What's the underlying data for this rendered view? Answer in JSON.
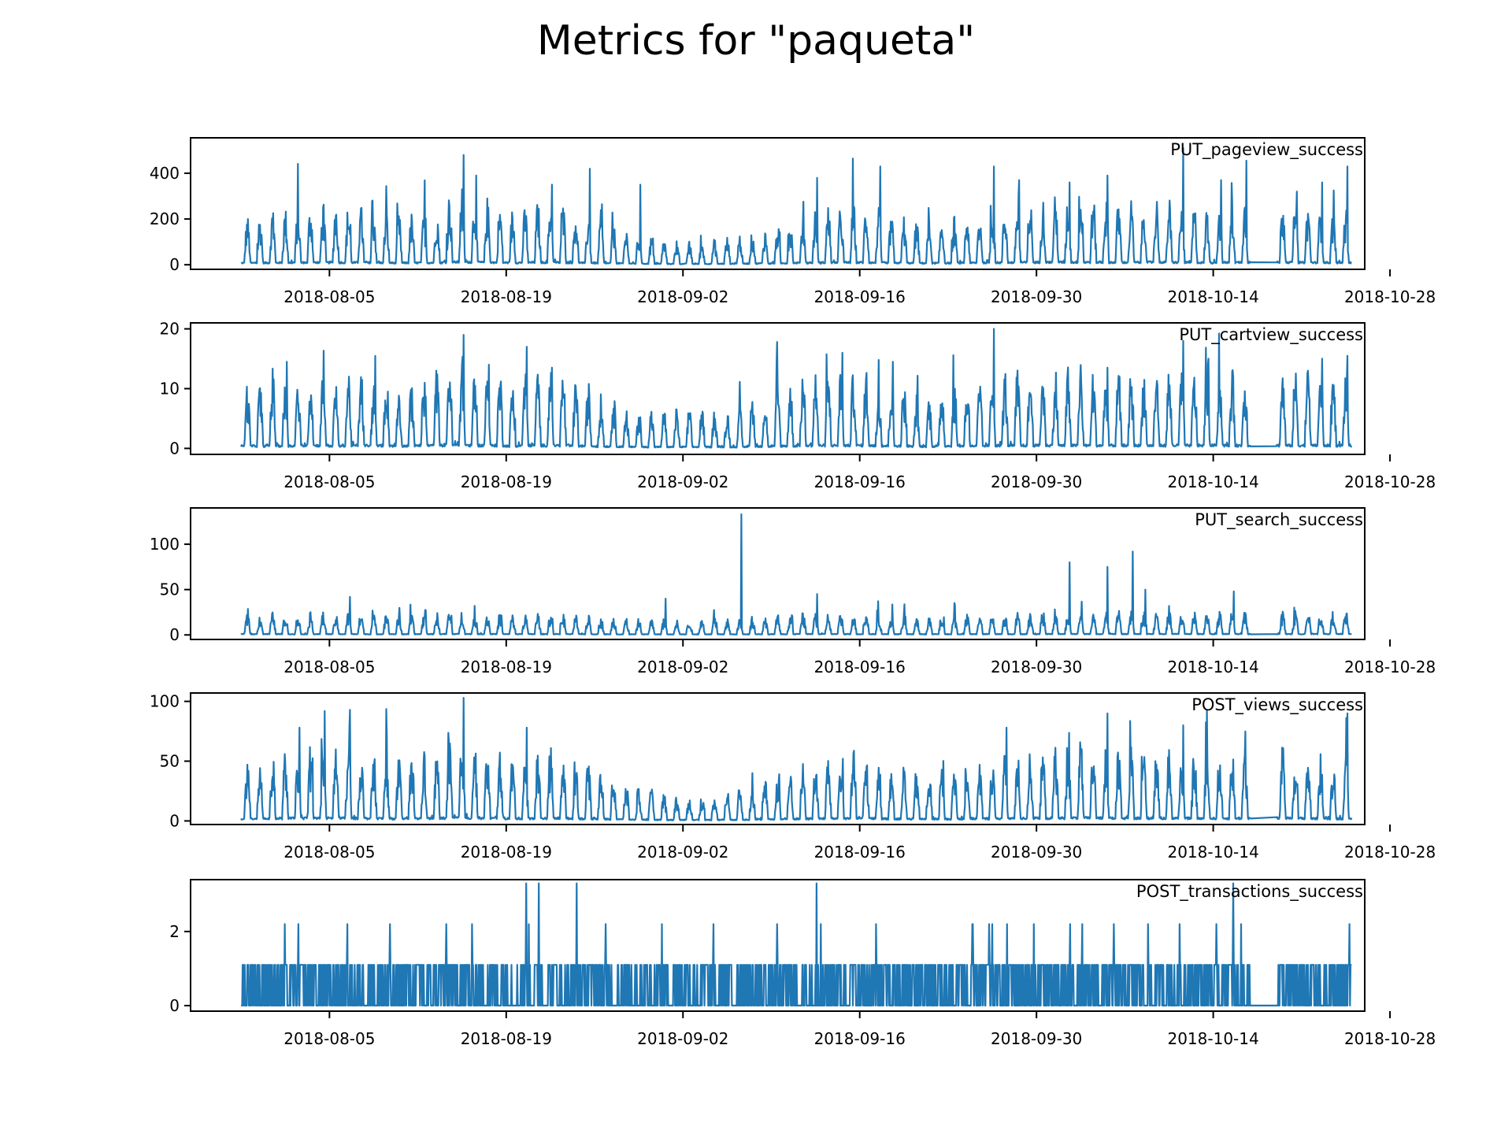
{
  "title": "Metrics for \"paqueta\"",
  "colors": {
    "line": "#1f77b4",
    "axis": "#000000",
    "background": "#ffffff"
  },
  "chart_data": [
    {
      "type": "line",
      "title": "PUT_pageview_success",
      "xlabel": "",
      "ylabel": "",
      "xlim": [
        "2018-07-25",
        "2018-10-26"
      ],
      "x_range": [
        "2018-07-29",
        "2018-10-25"
      ],
      "x_ticks": [
        "2018-08-05",
        "2018-08-19",
        "2018-09-02",
        "2018-09-16",
        "2018-09-30",
        "2018-10-14",
        "2018-10-28"
      ],
      "ylim": [
        -20,
        555
      ],
      "y_ticks": [
        0,
        200,
        400
      ],
      "gap": [
        "2018-10-17",
        "2018-10-19"
      ],
      "series": [
        {
          "daily_base": [
            95,
            100,
            105,
            110,
            115,
            120,
            120,
            125,
            120,
            115,
            110,
            105,
            100,
            100,
            105,
            110,
            140,
            150,
            145,
            130,
            120,
            110,
            115,
            125,
            130,
            120,
            110,
            100,
            90,
            80,
            70,
            60,
            55,
            50,
            45,
            45,
            45,
            50,
            55,
            60,
            65,
            70,
            80,
            90,
            100,
            110,
            115,
            120,
            125,
            120,
            110,
            100,
            95,
            90,
            85,
            90,
            95,
            100,
            105,
            110,
            115,
            120,
            125,
            130,
            135,
            135,
            140,
            135,
            130,
            125,
            125,
            130,
            135,
            130,
            125,
            120,
            115,
            120,
            125,
            130,
            130,
            130,
            130,
            125,
            120,
            115,
            110,
            110
          ],
          "peaks": [
            [
              "2018-08-15",
              480
            ],
            [
              "2018-08-16",
              390
            ],
            [
              "2018-08-22",
              350
            ],
            [
              "2018-08-25",
              420
            ],
            [
              "2018-08-29",
              350
            ],
            [
              "2018-09-12",
              380
            ],
            [
              "2018-09-17",
              430
            ],
            [
              "2018-09-26",
              430
            ],
            [
              "2018-09-28",
              370
            ],
            [
              "2018-10-02",
              360
            ],
            [
              "2018-10-05",
              390
            ],
            [
              "2018-10-11",
              510
            ],
            [
              "2018-10-14",
              370
            ],
            [
              "2018-10-16",
              455
            ],
            [
              "2018-10-18",
              450
            ],
            [
              "2018-10-22",
              360
            ],
            [
              "2018-10-24",
              430
            ]
          ]
        }
      ]
    },
    {
      "type": "line",
      "title": "PUT_cartview_success",
      "xlabel": "",
      "ylabel": "",
      "xlim": [
        "2018-07-25",
        "2018-10-26"
      ],
      "x_range": [
        "2018-07-29",
        "2018-10-25"
      ],
      "x_ticks": [
        "2018-08-05",
        "2018-08-19",
        "2018-09-02",
        "2018-09-16",
        "2018-09-30",
        "2018-10-14",
        "2018-10-28"
      ],
      "ylim": [
        -1,
        21
      ],
      "y_ticks": [
        0,
        10,
        20
      ],
      "gap": [
        "2018-10-17",
        "2018-10-19"
      ],
      "series": [
        {
          "daily_base": [
            5,
            5,
            6,
            5,
            5,
            6,
            6,
            5,
            6,
            6,
            5,
            6,
            5,
            5,
            6,
            6,
            7,
            7,
            6,
            6,
            6,
            5,
            6,
            6,
            6,
            6,
            5,
            5,
            4,
            4,
            3,
            3,
            3,
            3,
            3,
            3,
            3,
            3,
            3,
            3,
            4,
            4,
            5,
            5,
            6,
            6,
            6,
            6,
            6,
            6,
            5,
            5,
            5,
            4,
            4,
            5,
            5,
            5,
            5,
            6,
            6,
            6,
            6,
            6,
            6,
            6,
            6,
            6,
            6,
            6,
            6,
            6,
            6,
            6,
            6,
            6,
            6,
            6,
            6,
            6,
            6,
            6,
            6,
            6,
            6,
            6,
            6,
            6
          ],
          "peaks": [
            [
              "2018-08-01",
              14.5
            ],
            [
              "2018-08-08",
              15.5
            ],
            [
              "2018-08-15",
              19
            ],
            [
              "2018-08-17",
              14
            ],
            [
              "2018-08-20",
              17
            ],
            [
              "2018-08-22",
              13.5
            ],
            [
              "2018-09-14",
              16
            ],
            [
              "2018-09-18",
              14.5
            ],
            [
              "2018-09-26",
              20
            ],
            [
              "2018-10-05",
              13.5
            ],
            [
              "2018-10-11",
              18
            ],
            [
              "2018-10-13",
              15
            ],
            [
              "2018-10-22",
              15
            ],
            [
              "2018-10-24",
              15.5
            ]
          ]
        }
      ]
    },
    {
      "type": "line",
      "title": "PUT_search_success",
      "xlabel": "",
      "ylabel": "",
      "xlim": [
        "2018-07-25",
        "2018-10-26"
      ],
      "x_range": [
        "2018-07-29",
        "2018-10-25"
      ],
      "x_ticks": [
        "2018-08-05",
        "2018-08-19",
        "2018-09-02",
        "2018-09-16",
        "2018-09-30",
        "2018-10-14",
        "2018-10-28"
      ],
      "ylim": [
        -5,
        140
      ],
      "y_ticks": [
        0,
        50,
        100
      ],
      "gap": [
        "2018-10-17",
        "2018-10-19"
      ],
      "series": [
        {
          "daily_base": [
            10,
            10,
            11,
            10,
            10,
            11,
            11,
            10,
            11,
            11,
            10,
            11,
            10,
            10,
            11,
            11,
            12,
            12,
            11,
            11,
            11,
            10,
            11,
            11,
            11,
            11,
            10,
            10,
            9,
            9,
            8,
            8,
            8,
            8,
            8,
            8,
            8,
            8,
            8,
            8,
            9,
            9,
            10,
            10,
            11,
            11,
            11,
            11,
            11,
            11,
            10,
            10,
            10,
            9,
            9,
            10,
            10,
            10,
            10,
            11,
            11,
            11,
            11,
            12,
            12,
            12,
            12,
            12,
            12,
            12,
            12,
            12,
            12,
            12,
            12,
            12,
            12,
            12,
            12,
            12,
            12,
            12,
            12,
            12,
            12,
            12,
            12,
            12
          ],
          "peaks": [
            [
              "2018-08-06",
              42
            ],
            [
              "2018-08-31",
              40
            ],
            [
              "2018-09-06",
              133
            ],
            [
              "2018-09-12",
              45
            ],
            [
              "2018-10-02",
              80
            ],
            [
              "2018-10-05",
              75
            ],
            [
              "2018-10-07",
              92
            ],
            [
              "2018-10-08",
              50
            ],
            [
              "2018-10-15",
              48
            ]
          ]
        }
      ]
    },
    {
      "type": "line",
      "title": "POST_views_success",
      "xlabel": "",
      "ylabel": "",
      "xlim": [
        "2018-07-25",
        "2018-10-26"
      ],
      "x_range": [
        "2018-07-29",
        "2018-10-25"
      ],
      "x_ticks": [
        "2018-08-05",
        "2018-08-19",
        "2018-09-02",
        "2018-09-16",
        "2018-09-30",
        "2018-10-14",
        "2018-10-28"
      ],
      "ylim": [
        -3,
        107
      ],
      "y_ticks": [
        0,
        50,
        100
      ],
      "gap": [
        "2018-10-17",
        "2018-10-19"
      ],
      "series": [
        {
          "daily_base": [
            22,
            24,
            25,
            26,
            27,
            28,
            28,
            29,
            28,
            27,
            26,
            25,
            24,
            24,
            25,
            26,
            30,
            32,
            30,
            28,
            26,
            25,
            26,
            27,
            28,
            27,
            25,
            23,
            20,
            18,
            15,
            13,
            12,
            11,
            10,
            10,
            10,
            11,
            12,
            13,
            14,
            16,
            18,
            20,
            22,
            24,
            25,
            26,
            27,
            26,
            24,
            22,
            21,
            20,
            19,
            20,
            21,
            22,
            23,
            24,
            25,
            26,
            27,
            28,
            29,
            29,
            30,
            29,
            28,
            27,
            27,
            28,
            29,
            28,
            27,
            26,
            25,
            26,
            27,
            28,
            28,
            28,
            28,
            27,
            26,
            25,
            24,
            24
          ],
          "peaks": [
            [
              "2018-08-02",
              78
            ],
            [
              "2018-08-04",
              92
            ],
            [
              "2018-08-06",
              93
            ],
            [
              "2018-08-15",
              103
            ],
            [
              "2018-08-20",
              78
            ],
            [
              "2018-09-27",
              78
            ],
            [
              "2018-10-05",
              90
            ],
            [
              "2018-10-11",
              80
            ],
            [
              "2018-10-18",
              77
            ],
            [
              "2018-10-24",
              90
            ]
          ]
        }
      ]
    },
    {
      "type": "line",
      "title": "POST_transactions_success",
      "xlabel": "",
      "ylabel": "",
      "xlim": [
        "2018-07-25",
        "2018-10-26"
      ],
      "x_range": [
        "2018-07-29",
        "2018-10-25"
      ],
      "x_ticks": [
        "2018-08-05",
        "2018-08-19",
        "2018-09-02",
        "2018-09-16",
        "2018-09-30",
        "2018-10-14",
        "2018-10-28"
      ],
      "ylim": [
        -0.15,
        3.4
      ],
      "y_ticks": [
        0,
        2
      ],
      "gap": [
        "2018-10-17",
        "2018-10-19"
      ],
      "series": [
        {
          "levels": [
            0,
            1.1,
            2.2,
            3.3
          ],
          "peaks": [
            [
              "2018-08-20",
              3.3
            ],
            [
              "2018-08-21",
              3.3
            ],
            [
              "2018-08-24",
              3.3
            ],
            [
              "2018-09-12",
              3.3
            ],
            [
              "2018-10-15",
              3.3
            ]
          ]
        }
      ]
    }
  ]
}
